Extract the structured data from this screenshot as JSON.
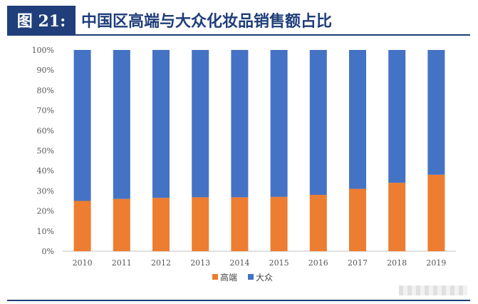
{
  "header": {
    "figure_label": "图 21:",
    "title": "中国区高端与大众化妆品销售额占比"
  },
  "colors": {
    "high_end": "#ed7d31",
    "mass": "#4472c4",
    "header_bg": "#1f3e7a"
  },
  "chart_data": {
    "type": "bar",
    "stacked": true,
    "title": "中国区高端与大众化妆品销售额占比",
    "xlabel": "",
    "ylabel": "",
    "categories": [
      "2010",
      "2011",
      "2012",
      "2013",
      "2014",
      "2015",
      "2016",
      "2017",
      "2018",
      "2019"
    ],
    "series": [
      {
        "name": "高端",
        "values": [
          25,
          26,
          26.5,
          26.8,
          26.8,
          27,
          28,
          31,
          34,
          38
        ]
      },
      {
        "name": "大众",
        "values": [
          75,
          74,
          73.5,
          73.2,
          73.2,
          73,
          72,
          69,
          66,
          62
        ]
      }
    ],
    "ylim": [
      0,
      100
    ],
    "yticks": [
      "0%",
      "10%",
      "20%",
      "30%",
      "40%",
      "50%",
      "60%",
      "70%",
      "80%",
      "90%",
      "100%"
    ],
    "grid": false,
    "legend_position": "bottom"
  }
}
